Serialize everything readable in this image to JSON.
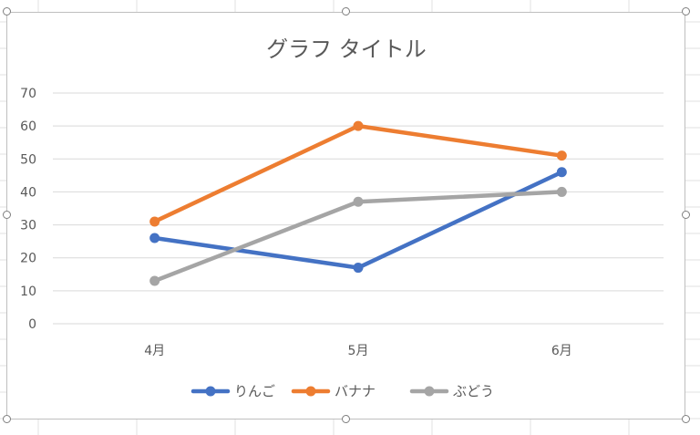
{
  "chart_data": {
    "type": "line",
    "title": "グラフ タイトル",
    "categories": [
      "4月",
      "5月",
      "6月"
    ],
    "series": [
      {
        "name": "りんご",
        "values": [
          26,
          17,
          46
        ],
        "color": "#4472C4"
      },
      {
        "name": "バナナ",
        "values": [
          31,
          60,
          51
        ],
        "color": "#ED7D31"
      },
      {
        "name": "ぶどう",
        "values": [
          13,
          37,
          40
        ],
        "color": "#A5A5A5"
      }
    ],
    "ylim": [
      0,
      70
    ],
    "yticks": [
      0,
      10,
      20,
      30,
      40,
      50,
      60,
      70
    ],
    "grid": true,
    "legend": "bottom",
    "colors": {
      "axis_text": "#595959",
      "gridline": "#d9d9d9",
      "title": "#595959"
    }
  }
}
